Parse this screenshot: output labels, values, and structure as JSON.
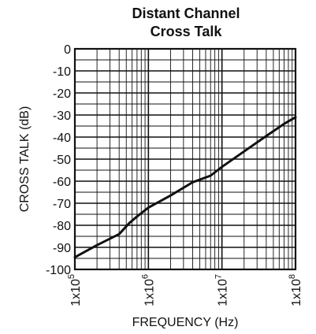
{
  "chart_data": {
    "type": "line",
    "title": [
      "Distant Channel",
      "Cross Talk"
    ],
    "xlabel": "FREQUENCY (Hz)",
    "ylabel": "CROSS TALK (dB)",
    "x_scale": "log",
    "xlim": [
      100000,
      100000000
    ],
    "ylim": [
      -100,
      0
    ],
    "x_tick_labels": [
      {
        "base": "1x10",
        "exp": "5",
        "value": 100000
      },
      {
        "base": "1x10",
        "exp": "6",
        "value": 1000000
      },
      {
        "base": "1x10",
        "exp": "7",
        "value": 10000000
      },
      {
        "base": "1x10",
        "exp": "8",
        "value": 100000000
      }
    ],
    "y_ticks": [
      0,
      -10,
      -20,
      -30,
      -40,
      -50,
      -60,
      -70,
      -80,
      -90,
      -100
    ],
    "grid": true,
    "series": [
      {
        "color": "#111111",
        "points": [
          {
            "x": 100000,
            "y": -94.5
          },
          {
            "x": 200000,
            "y": -89
          },
          {
            "x": 400000,
            "y": -84
          },
          {
            "x": 550000,
            "y": -79
          },
          {
            "x": 700000,
            "y": -76
          },
          {
            "x": 1000000,
            "y": -72
          },
          {
            "x": 2000000,
            "y": -66.5
          },
          {
            "x": 4000000,
            "y": -60.5
          },
          {
            "x": 7000000,
            "y": -57.5
          },
          {
            "x": 10000000,
            "y": -53.5
          },
          {
            "x": 20000000,
            "y": -46.5
          },
          {
            "x": 40000000,
            "y": -39.5
          },
          {
            "x": 70000000,
            "y": -34
          },
          {
            "x": 100000000,
            "y": -31
          }
        ]
      }
    ]
  }
}
